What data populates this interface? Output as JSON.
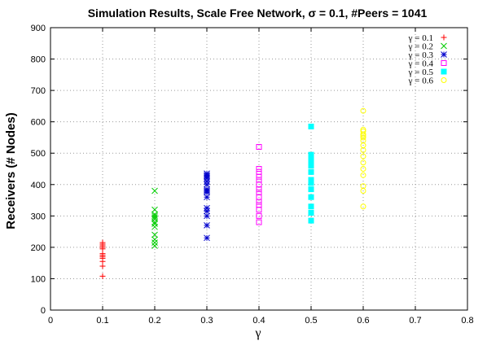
{
  "chart_data": {
    "type": "scatter",
    "title": "Simulation Results, Scale Free Network, σ = 0.1, #Peers = 1041",
    "xlabel": "γ",
    "ylabel": "Receivers (# Nodes)",
    "xlim": [
      0,
      0.8
    ],
    "ylim": [
      0,
      900
    ],
    "xticks": [
      0,
      0.1,
      0.2,
      0.3,
      0.4,
      0.5,
      0.6,
      0.7,
      0.8
    ],
    "xtick_labels": [
      "0",
      "0.1",
      "0.2",
      "0.3",
      "0.4",
      "0.5",
      "0.6",
      "0.7",
      "0.8"
    ],
    "yticks": [
      0,
      100,
      200,
      300,
      400,
      500,
      600,
      700,
      800,
      900
    ],
    "ytick_labels": [
      "0",
      "100",
      "200",
      "300",
      "400",
      "500",
      "600",
      "700",
      "800",
      "900"
    ],
    "grid": true,
    "legend_position": "top-right",
    "series": [
      {
        "name": "γ = 0.1",
        "color": "#ff0000",
        "marker": "plus",
        "x": 0.1,
        "values": [
          108,
          140,
          155,
          165,
          170,
          175,
          180,
          195,
          200,
          205,
          210,
          215
        ]
      },
      {
        "name": "γ = 0.2",
        "color": "#00cc00",
        "marker": "cross",
        "x": 0.2,
        "values": [
          205,
          215,
          225,
          240,
          265,
          275,
          280,
          290,
          295,
          300,
          305,
          320,
          380
        ]
      },
      {
        "name": "γ = 0.3",
        "color": "#0000cc",
        "marker": "star",
        "x": 0.3,
        "values": [
          230,
          270,
          300,
          315,
          325,
          360,
          375,
          380,
          385,
          400,
          410,
          420,
          425,
          430,
          435
        ]
      },
      {
        "name": "γ = 0.4",
        "color": "#ff00ff",
        "marker": "open-square",
        "x": 0.4,
        "values": [
          280,
          300,
          320,
          335,
          345,
          360,
          375,
          385,
          400,
          415,
          425,
          440,
          450,
          520
        ]
      },
      {
        "name": "γ = 0.5",
        "color": "#00ffff",
        "marker": "filled-square",
        "x": 0.5,
        "values": [
          285,
          310,
          330,
          360,
          385,
          405,
          415,
          440,
          460,
          470,
          480,
          490,
          495,
          585
        ]
      },
      {
        "name": "γ = 0.6",
        "color": "#ffff00",
        "marker": "open-circle",
        "x": 0.6,
        "values": [
          330,
          380,
          395,
          430,
          450,
          470,
          490,
          510,
          525,
          540,
          550,
          555,
          560,
          570,
          575,
          635
        ]
      }
    ]
  }
}
